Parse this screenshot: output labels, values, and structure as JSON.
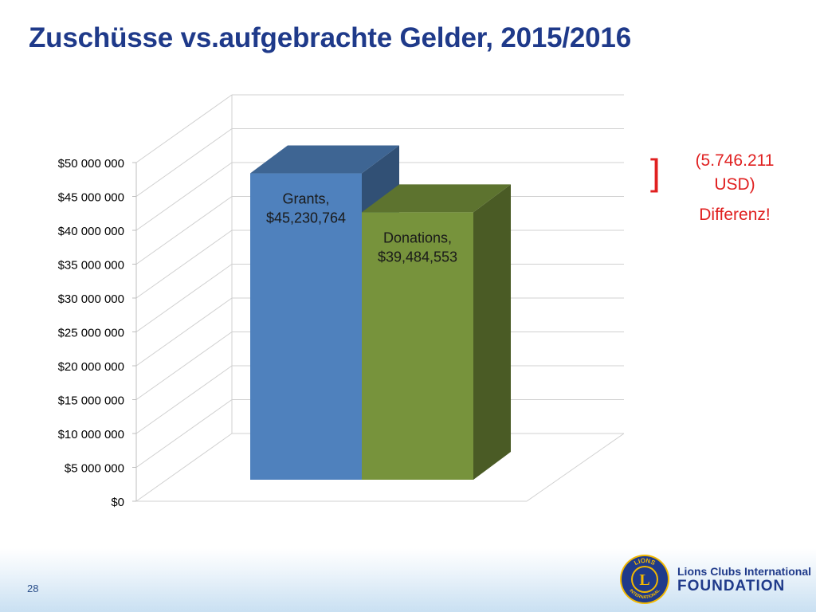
{
  "slide": {
    "title": "Zuschüsse vs.aufgebrachte Gelder, 2015/2016",
    "page_number": "28"
  },
  "annotation": {
    "bracket": "]",
    "line1": "(5.746.211",
    "line2": "USD)",
    "line3": "Differenz!",
    "color": "#e02020"
  },
  "logo": {
    "line1": "Lions Clubs International",
    "line2": "FOUNDATION",
    "emblem_letter": "L",
    "emblem_ring_top": "LIONS",
    "emblem_ring_bottom": "INTERNATIONAL"
  },
  "chart_data": {
    "type": "bar",
    "style": "3d-clustered-column",
    "categories": [
      "Grants",
      "Donations"
    ],
    "values": [
      45230764,
      39484553
    ],
    "value_labels": [
      "Grants,\n$45,230,764",
      "Donations,\n$39,484,553"
    ],
    "colors": [
      "#4f81bd",
      "#77933c"
    ],
    "ylim": [
      0,
      50000000
    ],
    "ytick_step": 5000000,
    "ytick_labels": [
      "$0",
      "$5 000 000",
      "$10 000 000",
      "$15 000 000",
      "$20 000 000",
      "$25 000 000",
      "$30 000 000",
      "$35 000 000",
      "$40 000 000",
      "$45 000 000",
      "$50 000 000"
    ],
    "grid": true,
    "legend": "none",
    "title": "",
    "xlabel": "",
    "ylabel": ""
  }
}
